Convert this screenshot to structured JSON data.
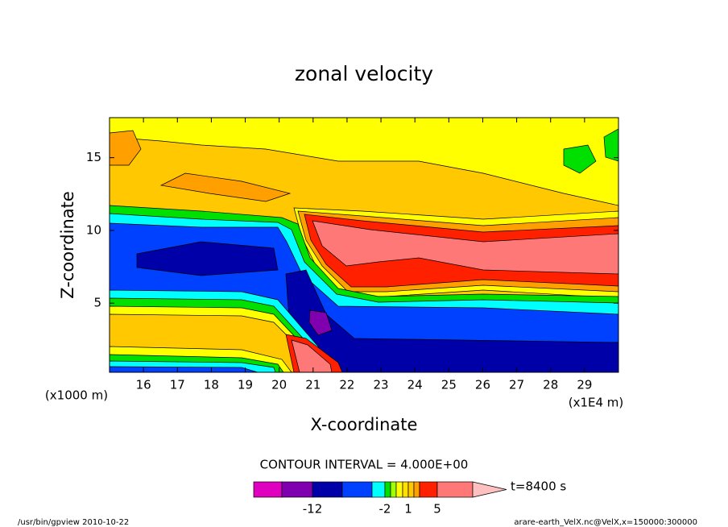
{
  "chart_data": {
    "type": "contour",
    "title": "zonal velocity",
    "x_label": "X-coordinate",
    "y_label": "Z-coordinate",
    "x_unit": "(x1E4 m)",
    "y_unit": "(x1000 m)",
    "xlim": [
      15,
      30
    ],
    "ylim": [
      0.25,
      17.75
    ],
    "xticks": [
      16,
      17,
      18,
      19,
      20,
      21,
      22,
      23,
      24,
      25,
      26,
      27,
      28,
      29
    ],
    "yticks": [
      5,
      10,
      15
    ],
    "contour_interval_text": "CONTOUR INTERVAL = 4.000E+00",
    "time_label": "t=8400 s",
    "colorbar": {
      "colors": [
        "#e000c0",
        "#8000b0",
        "#0000a8",
        "#0040ff",
        "#00ffff",
        "#00e000",
        "#a0ff00",
        "#ffff00",
        "#ffe000",
        "#ffc800",
        "#ffa000",
        "#ff2000",
        "#ff7878",
        "#ffc0c0"
      ],
      "levels": [
        -16,
        -12,
        -8,
        -4,
        -2,
        -1,
        -0.5,
        0,
        1,
        2,
        3,
        5,
        9
      ],
      "ticks": [
        -12,
        -2,
        1,
        5
      ]
    },
    "footer_left": "/usr/bin/gpview  2010-10-22",
    "footer_right": "arare-earth_VelX.nc@VelX,x=150000:300000"
  }
}
